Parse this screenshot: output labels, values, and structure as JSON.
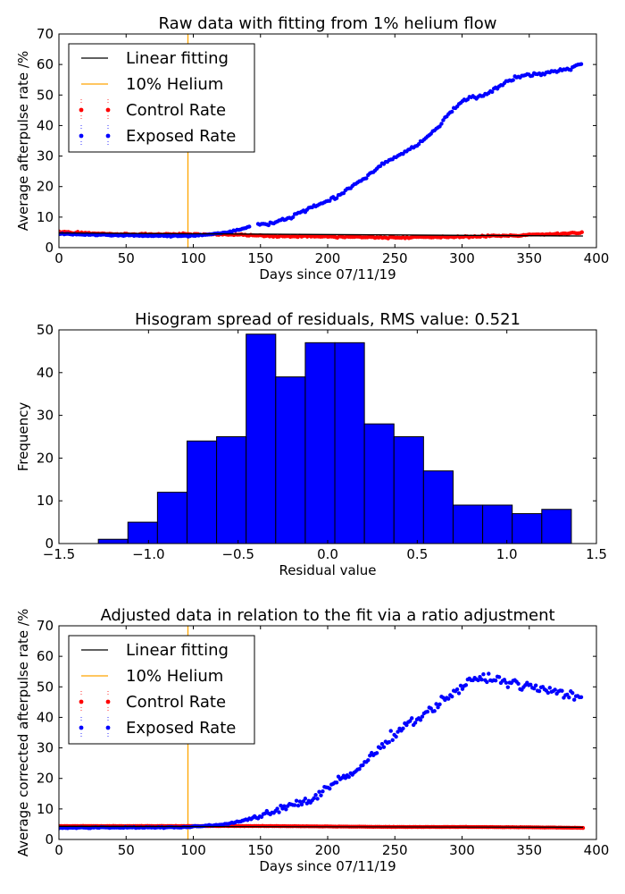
{
  "chart_data": [
    {
      "type": "scatter",
      "title": "Raw data with fitting from 1% helium flow",
      "xlabel": "Days since 07/11/19",
      "ylabel": "Average afterpulse rate /%",
      "xlim": [
        0,
        400
      ],
      "ylim": [
        0,
        70
      ],
      "xticks": [
        "0",
        "50",
        "100",
        "150",
        "200",
        "250",
        "300",
        "350",
        "400"
      ],
      "yticks": [
        "0",
        "10",
        "20",
        "30",
        "40",
        "50",
        "60",
        "70"
      ],
      "legend_position": "upper-left",
      "legend": [
        "Linear fitting",
        "10% Helium",
        "Control Rate",
        "Exposed Rate"
      ],
      "vline": {
        "name": "10% Helium",
        "x": 96,
        "color": "#ffa500"
      },
      "fit_line": {
        "name": "Linear fitting",
        "x": [
          0,
          390
        ],
        "y": [
          4.8,
          3.8
        ],
        "color": "#000000"
      },
      "series": [
        {
          "name": "Control Rate",
          "color": "#ff0000",
          "x": [
            0,
            40,
            95,
            130,
            160,
            200,
            250,
            300,
            340,
            370,
            390
          ],
          "y": [
            5.2,
            4.4,
            4.4,
            4.2,
            3.8,
            3.6,
            3.3,
            3.6,
            4.0,
            4.5,
            5.0
          ]
        },
        {
          "name": "Exposed Rate",
          "color": "#0000ff",
          "x": [
            0,
            40,
            95,
            110,
            125,
            140,
            150,
            160,
            170,
            180,
            190,
            200,
            210,
            220,
            230,
            240,
            250,
            260,
            270,
            280,
            290,
            300,
            310,
            320,
            330,
            340,
            350,
            360,
            370,
            380,
            390
          ],
          "y": [
            4.5,
            4.0,
            3.8,
            4.2,
            5.0,
            6.5,
            7.5,
            8.0,
            9.5,
            11.5,
            13.5,
            15.0,
            17.5,
            20.5,
            23.5,
            27.5,
            29.5,
            32.0,
            34.5,
            38.5,
            44.0,
            48.0,
            49.5,
            50.5,
            53.5,
            56.0,
            56.5,
            57.0,
            58.0,
            58.5,
            60.5
          ]
        }
      ]
    },
    {
      "type": "bar",
      "title": "Hisogram spread of residuals, RMS value: 0.521",
      "xlabel": "Residual value",
      "ylabel": "Frequency",
      "xlim": [
        -1.5,
        1.5
      ],
      "ylim": [
        0,
        50
      ],
      "xticks": [
        "−1.5",
        "−1.0",
        "−0.5",
        "0.0",
        "0.5",
        "1.0",
        "1.5"
      ],
      "yticks": [
        "0",
        "10",
        "20",
        "30",
        "40",
        "50"
      ],
      "bin_edges": [
        -1.28,
        -1.115,
        -0.95,
        -0.785,
        -0.62,
        -0.455,
        -0.29,
        -0.125,
        0.04,
        0.205,
        0.37,
        0.535,
        0.7,
        0.865,
        1.03,
        1.195,
        1.36
      ],
      "values": [
        1,
        5,
        12,
        24,
        25,
        49,
        39,
        47,
        47,
        28,
        25,
        17,
        9,
        9,
        7,
        8
      ],
      "color": "#0000ff"
    },
    {
      "type": "scatter",
      "title": "Adjusted data in relation to the fit via a ratio adjustment",
      "xlabel": "Days since 07/11/19",
      "ylabel": "Average corrected afterpulse rate /%",
      "xlim": [
        0,
        400
      ],
      "ylim": [
        0,
        70
      ],
      "xticks": [
        "0",
        "50",
        "100",
        "150",
        "200",
        "250",
        "300",
        "350",
        "400"
      ],
      "yticks": [
        "0",
        "10",
        "20",
        "30",
        "40",
        "50",
        "60",
        "70"
      ],
      "legend_position": "upper-left",
      "legend": [
        "Linear fitting",
        "10% Helium",
        "Control Rate",
        "Exposed Rate"
      ],
      "vline": {
        "name": "10% Helium",
        "x": 96,
        "color": "#ffa500"
      },
      "fit_line": {
        "name": "Linear fitting",
        "x": [
          0,
          390
        ],
        "y": [
          4.3,
          4.0
        ],
        "color": "#000000"
      },
      "series": [
        {
          "name": "Control Rate",
          "color": "#ff0000",
          "x": [
            0,
            50,
            100,
            150,
            190,
            250,
            300,
            350,
            390
          ],
          "y": [
            4.4,
            4.4,
            4.4,
            4.4,
            4.3,
            4.1,
            4.1,
            4.0,
            3.8
          ]
        },
        {
          "name": "Exposed Rate",
          "color": "#0000ff",
          "x": [
            0,
            40,
            95,
            110,
            125,
            140,
            150,
            160,
            170,
            180,
            190,
            200,
            210,
            220,
            230,
            240,
            250,
            260,
            270,
            280,
            290,
            300,
            310,
            320,
            330,
            340,
            350,
            360,
            370,
            380,
            390
          ],
          "y": [
            3.8,
            3.9,
            4.0,
            4.5,
            5.0,
            6.5,
            8.0,
            9.5,
            11.0,
            12.0,
            13.5,
            17.0,
            19.5,
            22.0,
            26.0,
            30.5,
            35.0,
            38.0,
            40.5,
            43.5,
            47.0,
            50.0,
            52.5,
            53.0,
            52.0,
            51.0,
            50.0,
            49.0,
            48.5,
            47.5,
            46.5
          ]
        }
      ]
    }
  ]
}
